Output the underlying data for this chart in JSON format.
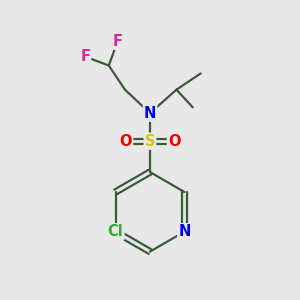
{
  "bg_color": "#e8e8e8",
  "bond_color": "#3a5a3a",
  "bond_width": 1.6,
  "atom_colors": {
    "F": "#e0259a",
    "N": "#0000ee",
    "S": "#cccc00",
    "O": "#ee0000",
    "Cl": "#33aa33",
    "C": "#3a5a3a"
  },
  "font_size_atom": 10.5
}
